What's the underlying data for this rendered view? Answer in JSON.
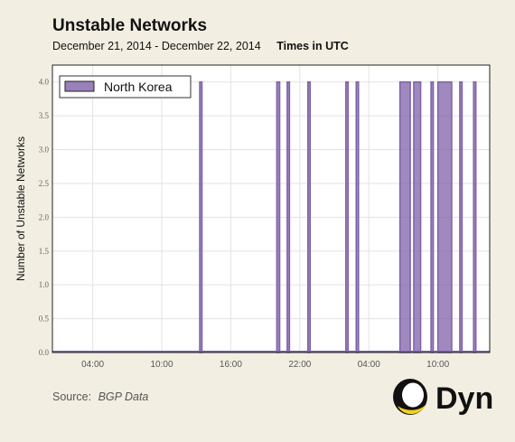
{
  "chart_data": {
    "type": "bar",
    "title": "Unstable Networks",
    "subtitle": "December 21, 2014 - December 22, 2014",
    "time_note": "Times in UTC",
    "ylabel": "Number of Unstable Networks",
    "xlabel": "",
    "ylim": [
      0,
      4.25
    ],
    "yticks": [
      "0.0",
      "0.5",
      "1.0",
      "1.5",
      "2.0",
      "2.5",
      "3.0",
      "3.5",
      "4.0"
    ],
    "xticks": [
      "04:00",
      "10:00",
      "16:00",
      "22:00",
      "04:00",
      "10:00"
    ],
    "xlim_hours": [
      0.5,
      38.5
    ],
    "xtick_hours": [
      4,
      10,
      16,
      22,
      28,
      34
    ],
    "legend": {
      "position": "top-left",
      "entries": [
        "North Korea"
      ]
    },
    "grid": true,
    "series": [
      {
        "name": "North Korea",
        "color": "#7f62a8",
        "spikes": [
          {
            "start": 13.3,
            "end": 13.45,
            "value": 4
          },
          {
            "start": 20.0,
            "end": 20.25,
            "value": 4
          },
          {
            "start": 20.9,
            "end": 21.1,
            "value": 4
          },
          {
            "start": 22.7,
            "end": 22.9,
            "value": 4
          },
          {
            "start": 26.0,
            "end": 26.2,
            "value": 4
          },
          {
            "start": 26.9,
            "end": 27.1,
            "value": 4
          },
          {
            "start": 30.7,
            "end": 31.6,
            "value": 4
          },
          {
            "start": 31.9,
            "end": 32.5,
            "value": 4
          },
          {
            "start": 33.4,
            "end": 33.6,
            "value": 4
          },
          {
            "start": 34.0,
            "end": 35.2,
            "value": 4
          },
          {
            "start": 35.9,
            "end": 36.1,
            "value": 4
          },
          {
            "start": 37.1,
            "end": 37.3,
            "value": 4
          }
        ]
      }
    ]
  },
  "source": {
    "label": "Source:",
    "value": "BGP Data"
  },
  "logo": {
    "text": "Dyn",
    "colors": {
      "ring": "#111111",
      "accent": "#f0d020"
    }
  }
}
